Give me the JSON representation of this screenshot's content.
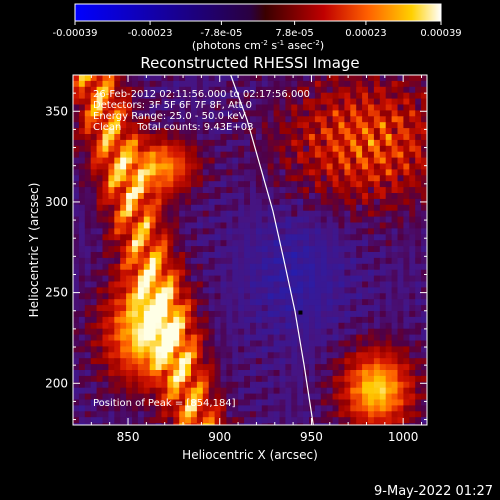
{
  "chart_data": {
    "type": "heatmap",
    "title": "Reconstructed RHESSI Image",
    "xlabel": "Heliocentric X (arcsec)",
    "ylabel": "Heliocentric Y (arcsec)",
    "xlim": [
      820,
      1013
    ],
    "ylim": [
      177,
      370
    ],
    "xticks": [
      850,
      900,
      950,
      1000
    ],
    "yticks": [
      200,
      250,
      300,
      350
    ],
    "colorbar": {
      "ticks": [
        "-0.00039",
        "-0.00023",
        "-7.8e-05",
        "7.8e-05",
        "0.00023",
        "0.00039"
      ],
      "range": [
        -0.00039,
        0.00039
      ],
      "unit_label": "(photons cm",
      "unit_sup1": "-2",
      "unit_mid": " s",
      "unit_sup2": "-1",
      "unit_mid2": " asec",
      "unit_sup3": "-2",
      "unit_end": ")"
    },
    "annotations": [
      "26-Feb-2012 02:11:56.000 to 02:17:56.000",
      "Detectors: 3F 5F 6F 7F 8F, Att 0",
      "Energy Range: 25.0 - 50.0 keV",
      "Clean     Total counts: 9.43E+03"
    ],
    "peak_label": "Position of Peak = [854,184]",
    "peak": [
      854,
      184
    ],
    "limb_curve": {
      "x": [
        906,
        915,
        922,
        929,
        935,
        941,
        946,
        951
      ],
      "y": [
        370,
        345,
        320,
        295,
        268,
        240,
        210,
        177
      ]
    },
    "minimum_marker": [
      944,
      239
    ],
    "grid": false
  },
  "timestamp": "9-May-2022 01:27"
}
